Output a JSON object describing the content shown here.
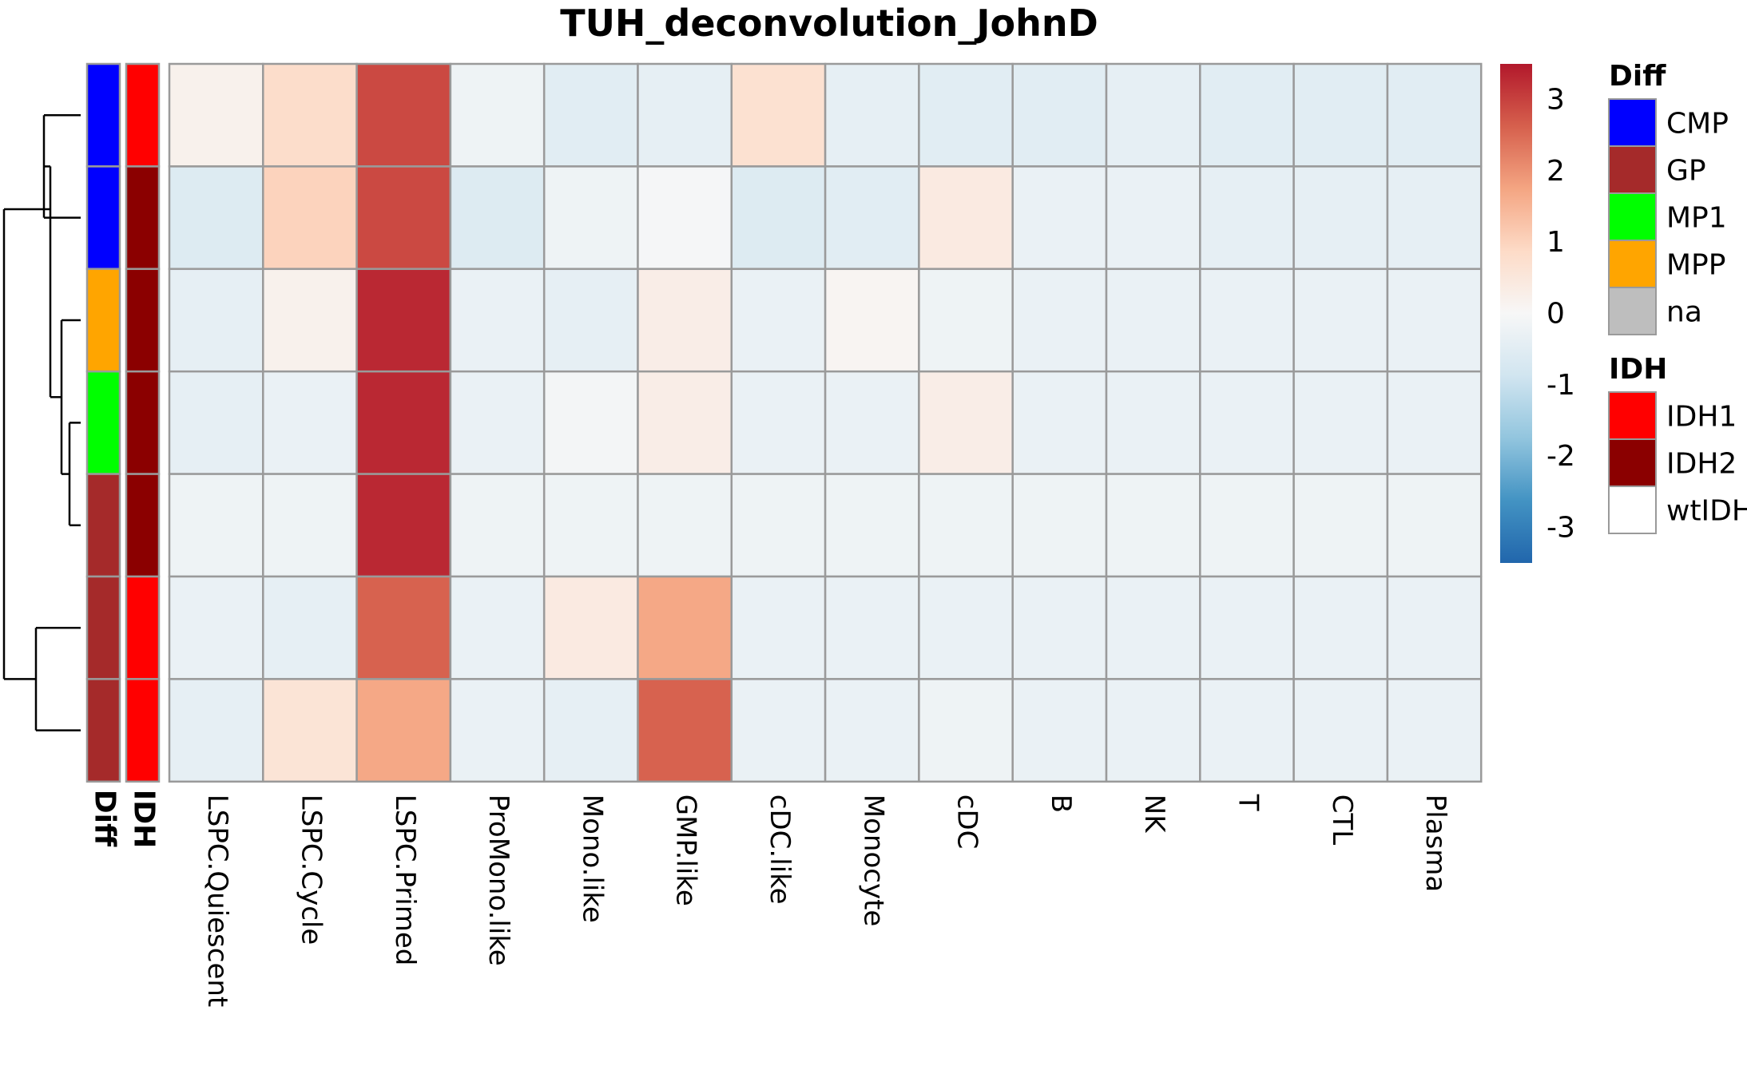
{
  "chart_data": {
    "type": "heatmap",
    "title": "TUH_deconvolution_JohnD",
    "columns": [
      "LSPC.Quiescent",
      "LSPC.Cycle",
      "LSPC.Primed",
      "ProMono.like",
      "Mono.like",
      "GMP.like",
      "cDC.like",
      "Monocyte",
      "cDC",
      "B",
      "NK",
      "T",
      "CTL",
      "Plasma"
    ],
    "values": [
      [
        0.2,
        0.8,
        2.9,
        -0.2,
        -0.5,
        -0.4,
        0.7,
        -0.4,
        -0.5,
        -0.5,
        -0.4,
        -0.5,
        -0.5,
        -0.5
      ],
      [
        -0.6,
        1.0,
        2.9,
        -0.6,
        -0.2,
        -0.05,
        -0.6,
        -0.5,
        0.4,
        -0.3,
        -0.3,
        -0.4,
        -0.4,
        -0.4
      ],
      [
        -0.4,
        0.2,
        3.3,
        -0.3,
        -0.4,
        0.3,
        -0.3,
        0.1,
        -0.2,
        -0.3,
        -0.3,
        -0.3,
        -0.3,
        -0.3
      ],
      [
        -0.4,
        -0.3,
        3.3,
        -0.3,
        -0.1,
        0.3,
        -0.3,
        -0.3,
        0.3,
        -0.3,
        -0.3,
        -0.3,
        -0.3,
        -0.3
      ],
      [
        -0.2,
        -0.2,
        3.3,
        -0.2,
        -0.2,
        -0.2,
        -0.2,
        -0.2,
        -0.2,
        -0.2,
        -0.2,
        -0.2,
        -0.2,
        -0.2
      ],
      [
        -0.3,
        -0.4,
        2.6,
        -0.3,
        0.4,
        1.7,
        -0.3,
        -0.3,
        -0.3,
        -0.3,
        -0.3,
        -0.3,
        -0.3,
        -0.3
      ],
      [
        -0.4,
        0.6,
        1.7,
        -0.3,
        -0.4,
        2.6,
        -0.3,
        -0.3,
        -0.2,
        -0.3,
        -0.3,
        -0.3,
        -0.3,
        -0.3
      ]
    ],
    "row_annotations": {
      "Diff": [
        "CMP",
        "CMP",
        "MPP",
        "MP1",
        "GP",
        "GP",
        "GP"
      ],
      "IDH": [
        "IDH1",
        "IDH2",
        "IDH2",
        "IDH2",
        "IDH2",
        "IDH1",
        "IDH1"
      ]
    },
    "annotation_labels": [
      "Diff",
      "IDH"
    ],
    "color_scale": {
      "min": -3.5,
      "max": 3.5,
      "ticks": [
        "3",
        "2",
        "1",
        "0",
        "-1",
        "-2",
        "-3"
      ],
      "stops": [
        "#2166AC",
        "#4393C3",
        "#92C5DE",
        "#D1E5F0",
        "#F7F7F7",
        "#FDDBC7",
        "#F4A582",
        "#D6604D",
        "#B2182B"
      ]
    },
    "legends": [
      {
        "title": "Diff",
        "items": [
          {
            "label": "CMP",
            "color": "#0000FF"
          },
          {
            "label": "GP",
            "color": "#A52A2A"
          },
          {
            "label": "MP1",
            "color": "#00FF00"
          },
          {
            "label": "MPP",
            "color": "#FFA500"
          },
          {
            "label": "na",
            "color": "#BEBEBE"
          }
        ]
      },
      {
        "title": "IDH",
        "items": [
          {
            "label": "IDH1",
            "color": "#FF0000"
          },
          {
            "label": "IDH2",
            "color": "#8B0000"
          },
          {
            "label": "wtIDH",
            "color": "#FFFFFF"
          }
        ]
      }
    ]
  }
}
